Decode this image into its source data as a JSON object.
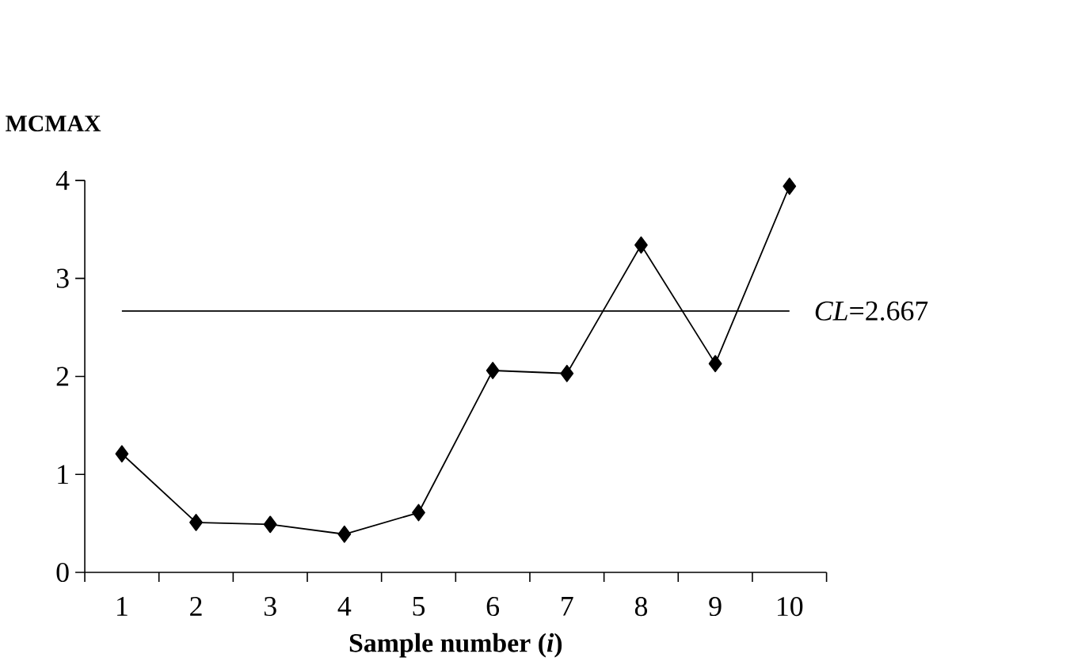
{
  "chart_data": {
    "type": "line",
    "ylabel": "MCMAX",
    "xlabel": "Sample number (*i*)",
    "categories": [
      "1",
      "2",
      "3",
      "4",
      "5",
      "6",
      "7",
      "8",
      "9",
      "10"
    ],
    "series": [
      {
        "color": "#000000",
        "values": [
          1.21,
          0.51,
          0.49,
          0.39,
          0.61,
          2.06,
          2.03,
          3.34,
          2.13,
          3.94
        ]
      }
    ],
    "ylim": [
      0,
      4
    ],
    "yticks": [
      0,
      1,
      2,
      3,
      4
    ],
    "ref_lines": [
      {
        "axis": "y",
        "value": 2.667,
        "label": "*CL*=2.667",
        "color": "#000000"
      }
    ],
    "marker": "diamond",
    "line_style": "solid",
    "grid": false
  }
}
